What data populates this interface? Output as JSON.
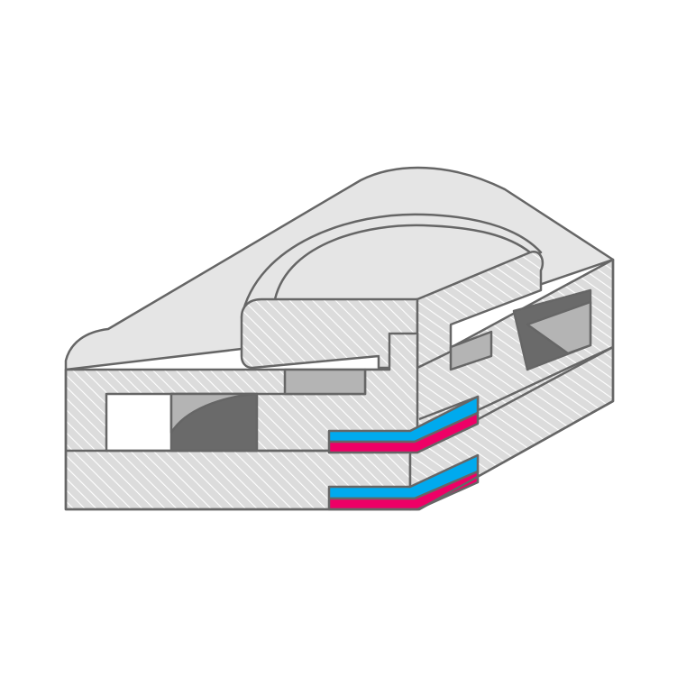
{
  "diagram": {
    "kind": "isometric cross-section illustration",
    "colors": {
      "background": "#ffffff",
      "outline": "#666666",
      "top_surface": "#e5e5e5",
      "section_fill": "#dcdcdc",
      "hatch": "#ffffff",
      "cavity_dark": "#6a6a6a",
      "cavity_light": "#b4b4b4",
      "layer_blue": "#00aaee",
      "layer_pink": "#ee0066"
    }
  }
}
